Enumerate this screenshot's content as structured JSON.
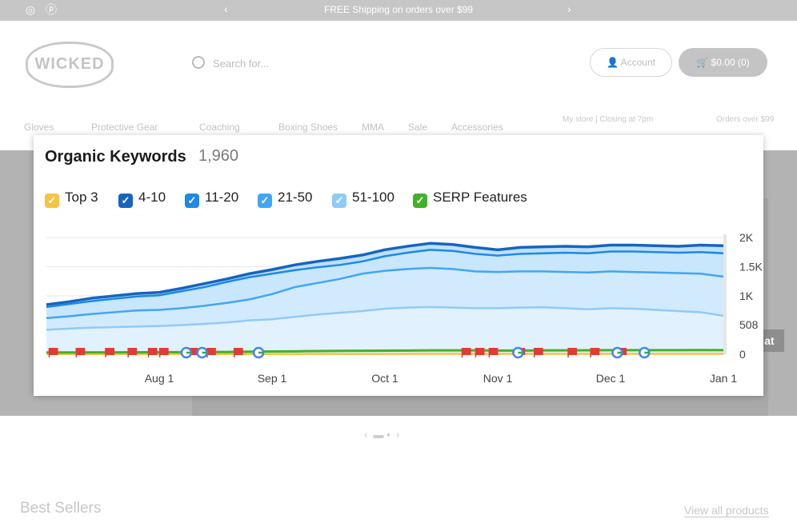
{
  "announcement": {
    "text": "FREE Shipping on orders over $99",
    "prev": "‹",
    "next": "›"
  },
  "social": {
    "instagram": "◎",
    "pinterest": "ⓟ"
  },
  "header": {
    "logo": "WICKED",
    "search_placeholder": "Search for...",
    "account_label": "Account",
    "cart_label": "$0.00 (0)"
  },
  "nav": {
    "items": [
      "Gloves",
      "Protective Gear",
      "Coaching",
      "Boxing Shoes",
      "MMA",
      "Sale",
      "Accessories"
    ],
    "store": "My store | Closing at 7pm",
    "shipping": "Orders over $99"
  },
  "hero": {
    "badge": "at"
  },
  "home": {
    "best_sellers": "Best Sellers",
    "view_all": "View all products"
  },
  "chart_data": {
    "type": "area",
    "title": "Organic Keywords",
    "total": "1,960",
    "legend": [
      {
        "label": "Top 3",
        "color": "#f6c344",
        "checked": true
      },
      {
        "label": "4-10",
        "color": "#1565c0",
        "checked": true
      },
      {
        "label": "11-20",
        "color": "#1e88e5",
        "checked": true
      },
      {
        "label": "21-50",
        "color": "#42a5f5",
        "checked": true
      },
      {
        "label": "51-100",
        "color": "#90caf9",
        "checked": true
      },
      {
        "label": "SERP Features",
        "color": "#43b02a",
        "checked": true
      }
    ],
    "x_ticks": [
      "Aug 1",
      "Sep 1",
      "Oct 1",
      "Nov 1",
      "Dec 1",
      "Jan 1"
    ],
    "y_ticks": [
      "0",
      "508",
      "1K",
      "1.5K",
      "2K"
    ],
    "y_tick_values": [
      0,
      508,
      1000,
      1500,
      2000
    ],
    "ylim": [
      0,
      2000
    ],
    "x_index_ticks": [
      5,
      10,
      15,
      20,
      25,
      30
    ],
    "series": [
      {
        "name": "Top 3",
        "color": "#f6c344",
        "values": [
          3,
          3,
          3,
          3,
          3,
          3,
          4,
          4,
          4,
          4,
          4,
          4,
          5,
          5,
          5,
          5,
          6,
          6,
          6,
          6,
          6,
          6,
          6,
          6,
          6,
          6,
          6,
          6,
          6,
          6,
          6
        ]
      },
      {
        "name": "4-10",
        "color": "#1565c0",
        "values": [
          850,
          900,
          960,
          1000,
          1040,
          1060,
          1130,
          1210,
          1290,
          1380,
          1450,
          1530,
          1590,
          1640,
          1700,
          1790,
          1850,
          1900,
          1880,
          1830,
          1790,
          1830,
          1840,
          1850,
          1840,
          1870,
          1870,
          1860,
          1850,
          1870,
          1860
        ]
      },
      {
        "name": "11-20",
        "color": "#1e88e5",
        "values": [
          810,
          860,
          910,
          950,
          990,
          1010,
          1080,
          1150,
          1240,
          1320,
          1380,
          1440,
          1490,
          1530,
          1590,
          1680,
          1740,
          1790,
          1770,
          1720,
          1690,
          1720,
          1730,
          1740,
          1730,
          1760,
          1760,
          1750,
          1740,
          1750,
          1730
        ]
      },
      {
        "name": "21-50",
        "color": "#42a5f5",
        "values": [
          620,
          650,
          690,
          720,
          750,
          760,
          790,
          830,
          880,
          940,
          1030,
          1150,
          1220,
          1290,
          1380,
          1430,
          1460,
          1480,
          1460,
          1420,
          1410,
          1420,
          1420,
          1410,
          1400,
          1420,
          1410,
          1400,
          1390,
          1380,
          1330
        ]
      },
      {
        "name": "51-100",
        "color": "#90caf9",
        "values": [
          420,
          440,
          455,
          465,
          475,
          485,
          500,
          520,
          545,
          580,
          600,
          640,
          680,
          710,
          740,
          780,
          800,
          810,
          800,
          790,
          790,
          800,
          805,
          790,
          770,
          790,
          780,
          760,
          740,
          720,
          660
        ]
      },
      {
        "name": "SERP Features",
        "color": "#43b02a",
        "values": [
          30,
          30,
          32,
          32,
          34,
          34,
          36,
          38,
          40,
          45,
          48,
          50,
          55,
          58,
          60,
          62,
          64,
          66,
          66,
          66,
          64,
          64,
          66,
          66,
          68,
          70,
          70,
          70,
          70,
          72,
          70
        ]
      }
    ],
    "annotations": {
      "flags": [
        0.3,
        1.5,
        2.8,
        3.8,
        4.7,
        5.2,
        6.5,
        7.3,
        8.5,
        18.6,
        19.2,
        19.8,
        21.0,
        21.8,
        23.3,
        24.3,
        25.5
      ],
      "google": [
        6.2,
        6.9,
        9.4,
        20.9,
        25.3,
        26.5
      ]
    }
  }
}
